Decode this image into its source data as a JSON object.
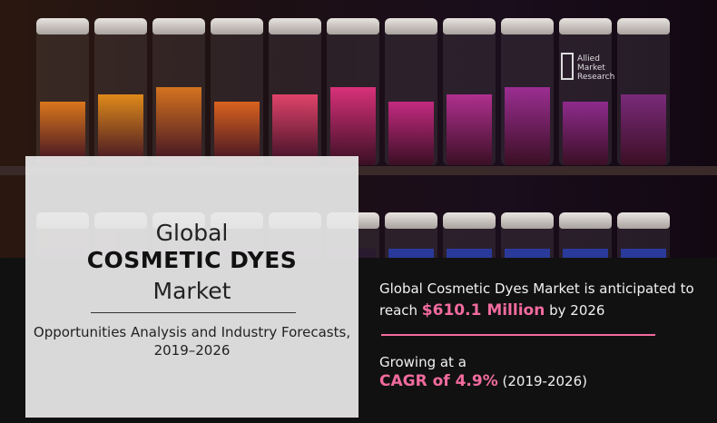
{
  "hero": {
    "title_line1": "Global",
    "title_line2": "COSMETIC DYES",
    "title_line3": "Market",
    "subtitle": "Opportunities Analysis and Industry Forecasts, 2019–2026"
  },
  "logo": {
    "line1": "Allied",
    "line2": "Market",
    "line3": "Research"
  },
  "stats": {
    "market_prefix": "Global Cosmetic Dyes Market is anticipated to reach",
    "market_value": "$610.1 Million",
    "market_suffix": "by 2026",
    "growth_prefix": "Growing at a",
    "cagr": "CAGR of 4.9%",
    "cagr_period": "(2019-2026)"
  },
  "colors": {
    "accent": "#f26b9e",
    "background": "#111111",
    "panel": "#e8e8e8"
  }
}
